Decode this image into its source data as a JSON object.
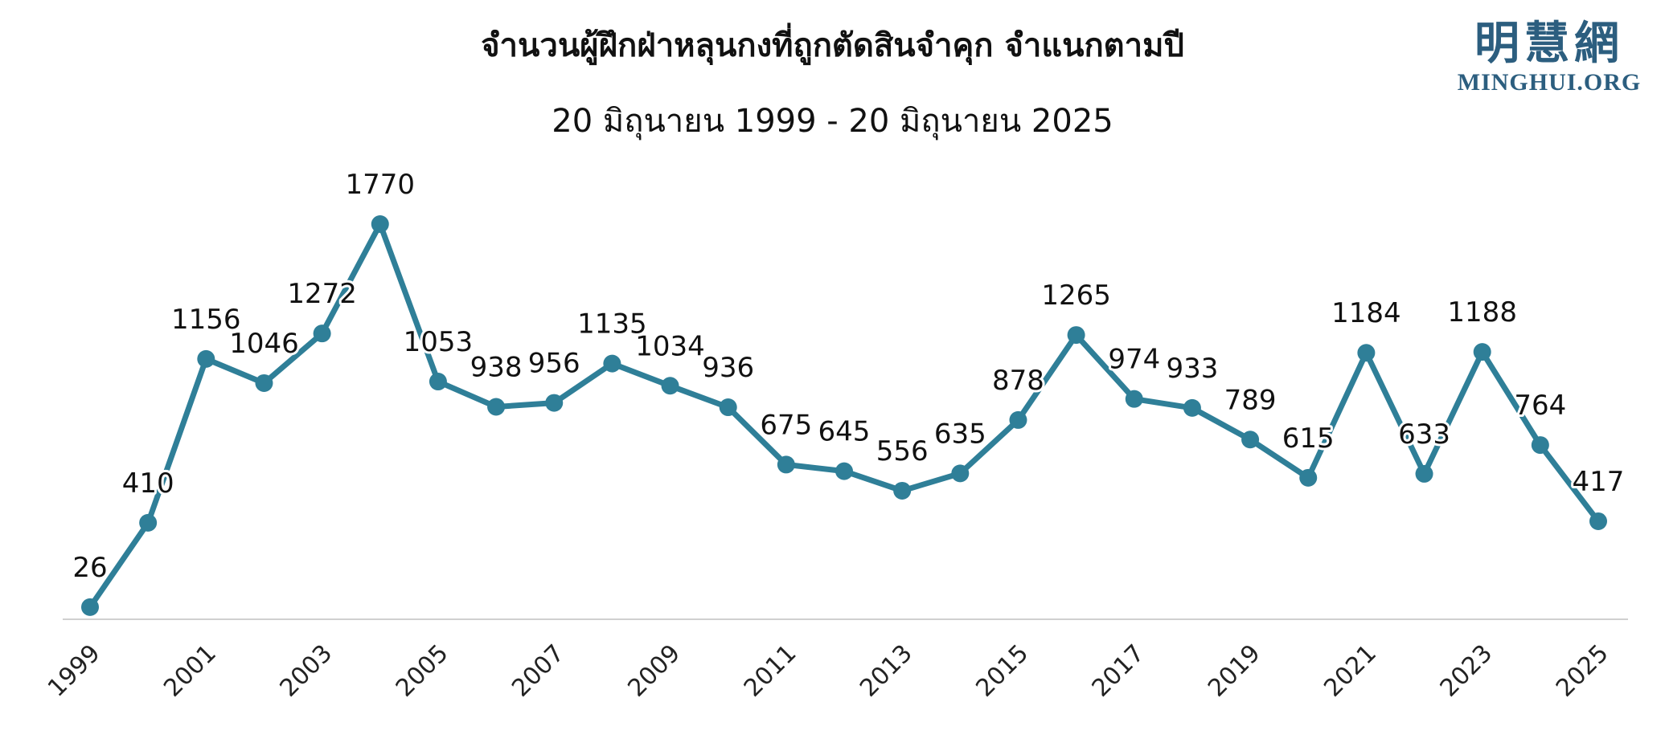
{
  "title": "จำนวนผู้ฝึกฝ่าหลุนกงที่ถูกตัดสินจำคุก จำแนกตามปี",
  "subtitle": "20 มิถุนายน 1999 - 20 มิถุนายน 2025",
  "logo": {
    "cjk": "明慧網",
    "latin": "MINGHUI.ORG"
  },
  "colors": {
    "line": "#2f7f98",
    "marker": "#2f7f98",
    "axis": "#d0d0d0",
    "text": "#111111",
    "logo": "#2c5e7f"
  },
  "chart_data": {
    "type": "line",
    "x": [
      1999,
      2000,
      2001,
      2002,
      2003,
      2004,
      2005,
      2006,
      2007,
      2008,
      2009,
      2010,
      2011,
      2012,
      2013,
      2014,
      2015,
      2016,
      2017,
      2018,
      2019,
      2020,
      2021,
      2022,
      2023,
      2024,
      2025
    ],
    "values": [
      26,
      410,
      1156,
      1046,
      1272,
      1770,
      1053,
      938,
      956,
      1135,
      1034,
      936,
      675,
      645,
      556,
      635,
      878,
      1265,
      974,
      933,
      789,
      615,
      1184,
      633,
      1188,
      764,
      417
    ],
    "x_tick_labels": [
      "1999",
      "2001",
      "2003",
      "2005",
      "2007",
      "2009",
      "2011",
      "2013",
      "2015",
      "2017",
      "2019",
      "2021",
      "2023",
      "2025"
    ],
    "data_labels": true,
    "ylim": [
      0,
      1770
    ],
    "y_axis_visible": false,
    "grid": false,
    "legend": "none"
  }
}
